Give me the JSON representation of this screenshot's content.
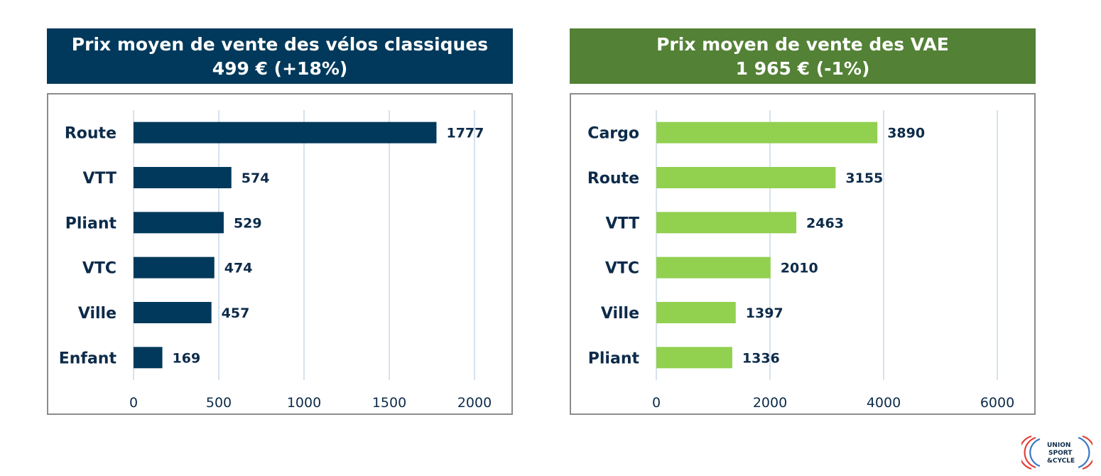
{
  "colors": {
    "left_banner": "#00395b",
    "right_banner": "#538135",
    "left_bar": "#00395b",
    "right_bar": "#92d050",
    "grid": "#c9d9e8",
    "text": "#0d2b4a",
    "logo_red": "#e0413b",
    "logo_blue": "#3a78c2"
  },
  "left": {
    "title_line1": "Prix moyen de vente des vélos classiques",
    "title_line2": "499 € (+18%)"
  },
  "right": {
    "title_line1": "Prix moyen de vente des VAE",
    "title_line2": "1 965 € (-1%)"
  },
  "logo": {
    "line1": "UNION",
    "line2": "SPORT",
    "line3": "&CYCLE"
  },
  "chart_data": [
    {
      "type": "bar",
      "orientation": "horizontal",
      "categories": [
        "Route",
        "VTT",
        "Pliant",
        "VTC",
        "Ville",
        "Enfant"
      ],
      "values": [
        1777,
        574,
        529,
        474,
        457,
        169
      ],
      "xlim": [
        0,
        2000
      ],
      "ticks": [
        0,
        500,
        1000,
        1500,
        2000
      ],
      "grid": true
    },
    {
      "type": "bar",
      "orientation": "horizontal",
      "categories": [
        "Cargo",
        "Route",
        "VTT",
        "VTC",
        "Ville",
        "Pliant"
      ],
      "values": [
        3890,
        3155,
        2463,
        2010,
        1397,
        1336
      ],
      "xlim": [
        0,
        6000
      ],
      "ticks": [
        0,
        2000,
        4000,
        6000
      ],
      "grid": true
    }
  ]
}
